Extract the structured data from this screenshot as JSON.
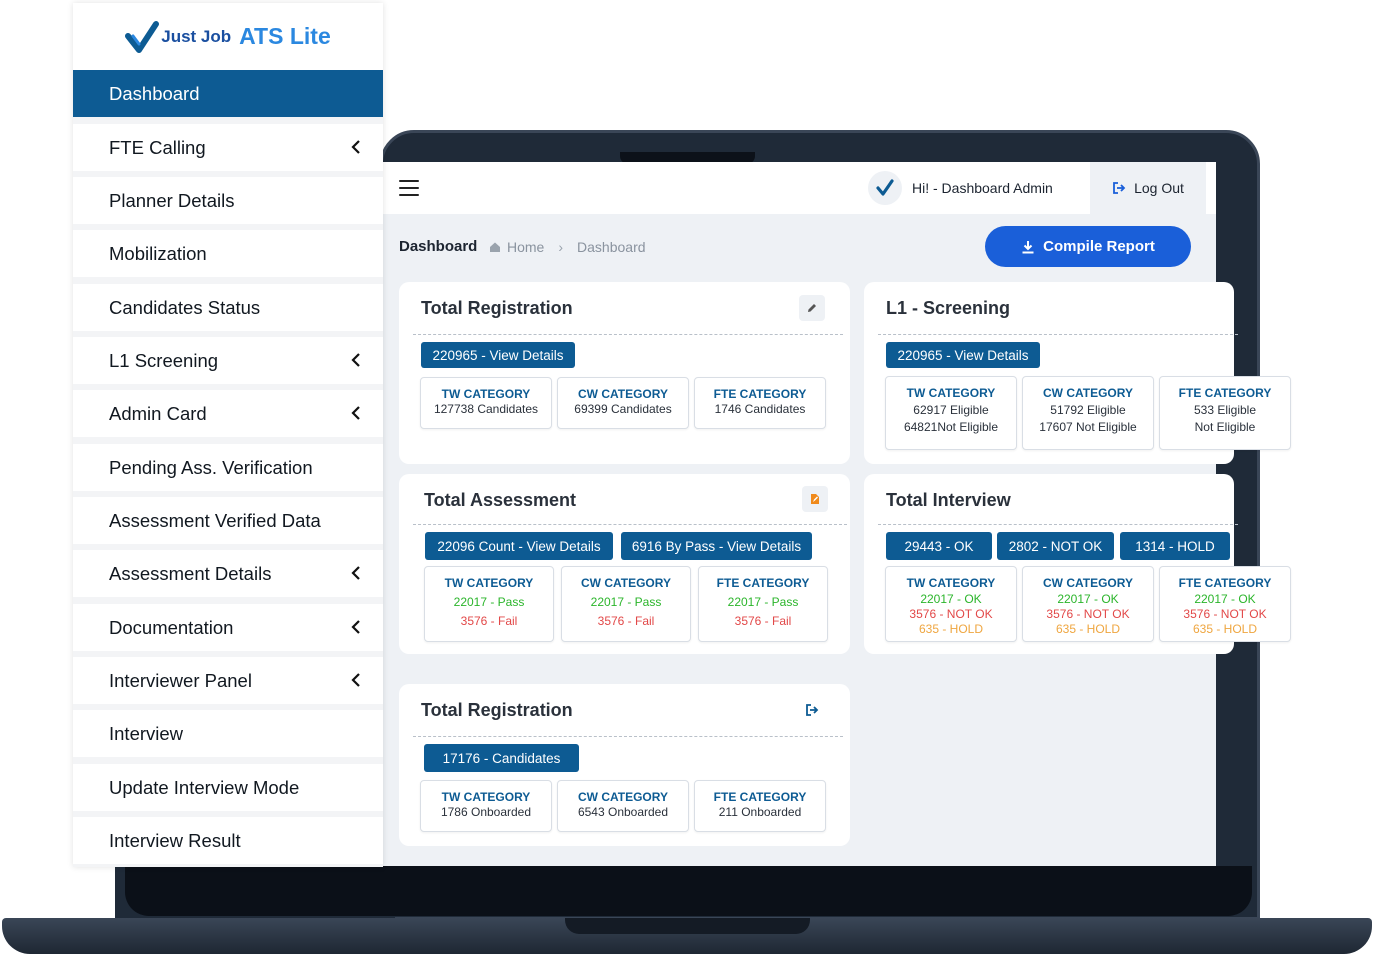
{
  "brand": {
    "logo_small": "Just Job",
    "logo_big": "ATS Lite"
  },
  "sidebar": {
    "items": [
      {
        "label": "Dashboard",
        "active": true,
        "has_submenu": false
      },
      {
        "label": "FTE Calling",
        "has_submenu": true
      },
      {
        "label": "Planner Details",
        "has_submenu": false
      },
      {
        "label": "Mobilization",
        "has_submenu": false
      },
      {
        "label": "Candidates Status",
        "has_submenu": false
      },
      {
        "label": "L1 Screening",
        "has_submenu": true
      },
      {
        "label": "Admin Card",
        "has_submenu": true
      },
      {
        "label": "Pending Ass. Verification",
        "has_submenu": false
      },
      {
        "label": "Assessment Verified Data",
        "has_submenu": false
      },
      {
        "label": "Assessment Details",
        "has_submenu": true
      },
      {
        "label": "Documentation",
        "has_submenu": true
      },
      {
        "label": "Interviewer Panel",
        "has_submenu": true
      },
      {
        "label": "Interview",
        "has_submenu": false
      },
      {
        "label": "Update Interview Mode",
        "has_submenu": false
      },
      {
        "label": "Interview Result",
        "has_submenu": false
      }
    ]
  },
  "header": {
    "greeting": "Hi! - Dashboard Admin",
    "logout_label": "Log Out"
  },
  "page": {
    "title": "Dashboard",
    "breadcrumb": [
      "Home",
      "Dashboard"
    ],
    "compile_label": "Compile Report"
  },
  "cards": {
    "total_registration": {
      "title": "Total Registration",
      "pill": "220965 - View Details",
      "cats": [
        {
          "title": "TW CATEGORY",
          "line": "127738 Candidates"
        },
        {
          "title": "CW CATEGORY",
          "line": "69399 Candidates"
        },
        {
          "title": "FTE CATEGORY",
          "line": "1746 Candidates"
        }
      ]
    },
    "l1_screening": {
      "title": "L1 - Screening",
      "pill": "220965 - View Details",
      "cats": [
        {
          "title": "TW CATEGORY",
          "line1": "62917 Eligible",
          "line2": "64821Not Eligible"
        },
        {
          "title": "CW CATEGORY",
          "line1": "51792 Eligible",
          "line2": "17607 Not Eligible"
        },
        {
          "title": "FTE CATEGORY",
          "line1": "533 Eligible",
          "line2": "Not Eligible"
        }
      ]
    },
    "total_assessment": {
      "title": "Total Assessment",
      "pills": [
        "22096 Count - View Details",
        "6916 By Pass - View Details"
      ],
      "cats": [
        {
          "title": "TW CATEGORY",
          "pass": "22017 - Pass",
          "fail": "3576 - Fail"
        },
        {
          "title": "CW CATEGORY",
          "pass": "22017 - Pass",
          "fail": "3576 - Fail"
        },
        {
          "title": "FTE CATEGORY",
          "pass": "22017 - Pass",
          "fail": "3576 - Fail"
        }
      ]
    },
    "total_interview": {
      "title": "Total Interview",
      "pills": [
        "29443 - OK",
        "2802 - NOT OK",
        "1314 - HOLD"
      ],
      "cats": [
        {
          "title": "TW CATEGORY",
          "ok": "22017 - OK",
          "notok": "3576 - NOT OK",
          "hold": "635 - HOLD"
        },
        {
          "title": "CW CATEGORY",
          "ok": "22017 - OK",
          "notok": "3576 - NOT OK",
          "hold": "635 - HOLD"
        },
        {
          "title": "FTE CATEGORY",
          "ok": "22017 - OK",
          "notok": "3576 - NOT OK",
          "hold": "635 - HOLD"
        }
      ]
    },
    "total_registration_2": {
      "title": "Total Registration",
      "pill": "17176 - Candidates",
      "cats": [
        {
          "title": "TW CATEGORY",
          "line": "1786 Onboarded"
        },
        {
          "title": "CW CATEGORY",
          "line": "6543 Onboarded"
        },
        {
          "title": "FTE CATEGORY",
          "line": "211 Onboarded"
        }
      ]
    }
  },
  "colors": {
    "primary": "#0d5b93",
    "accent": "#1a5fd9",
    "ok": "#2bb52b",
    "fail": "#e24848",
    "hold": "#efa640"
  }
}
